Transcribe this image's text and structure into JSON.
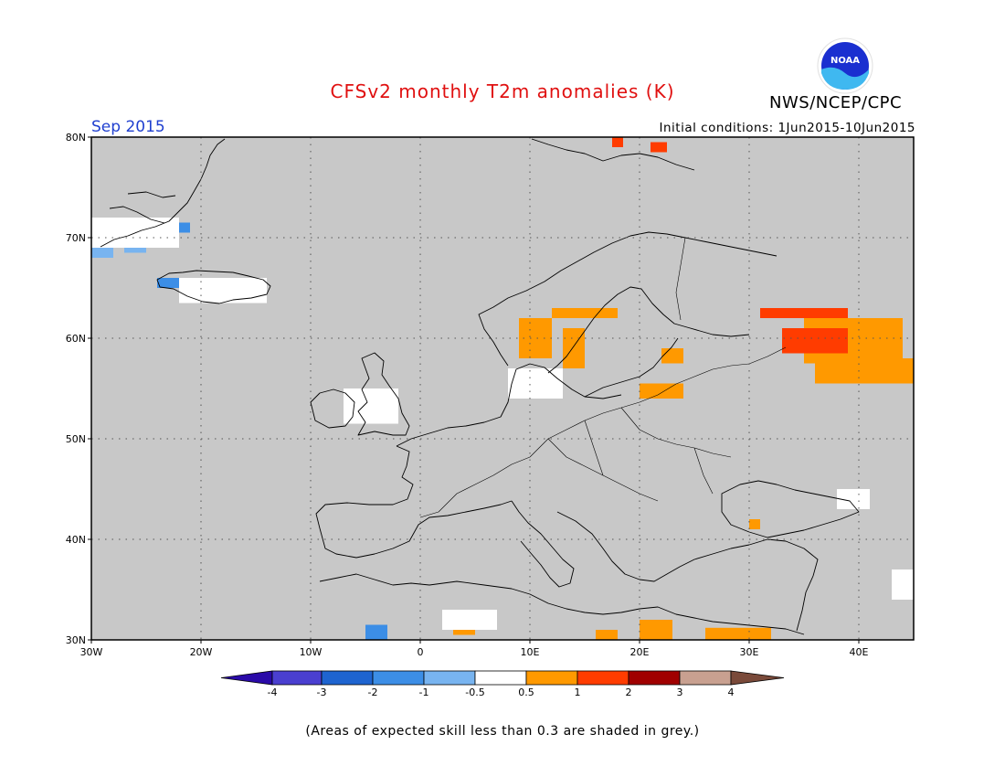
{
  "title": "CFSv2 monthly T2m anomalies (K)",
  "agency": "NWS/NCEP/CPC",
  "valid_month": "Sep 2015",
  "initial_conditions": "Initial conditions: 1Jun2015-10Jun2015",
  "footnote": "(Areas of expected skill less than 0.3 are shaded in grey.)",
  "logo_text": "NOAA",
  "map": {
    "lon_range": [
      -30,
      45
    ],
    "lat_range": [
      30,
      80
    ],
    "lon_ticks": [
      {
        "value": -30,
        "label": "30W"
      },
      {
        "value": -20,
        "label": "20W"
      },
      {
        "value": -10,
        "label": "10W"
      },
      {
        "value": 0,
        "label": "0"
      },
      {
        "value": 10,
        "label": "10E"
      },
      {
        "value": 20,
        "label": "20E"
      },
      {
        "value": 30,
        "label": "30E"
      },
      {
        "value": 40,
        "label": "40E"
      }
    ],
    "lat_ticks": [
      {
        "value": 30,
        "label": "30N"
      },
      {
        "value": 40,
        "label": "40N"
      },
      {
        "value": 50,
        "label": "50N"
      },
      {
        "value": 60,
        "label": "60N"
      },
      {
        "value": 70,
        "label": "70N"
      },
      {
        "value": 80,
        "label": "80N"
      }
    ],
    "skill_mask_color": "#c8c8c8",
    "anomaly_cells": [
      {
        "lon0": 31,
        "lon1": 39,
        "lat0": 62,
        "lat1": 63,
        "value": 1.5
      },
      {
        "lon0": 35,
        "lon1": 44,
        "lat0": 57.5,
        "lat1": 62,
        "value": 0.7
      },
      {
        "lon0": 33,
        "lon1": 39,
        "lat0": 58.5,
        "lat1": 61,
        "value": 1.5
      },
      {
        "lon0": 36,
        "lon1": 45,
        "lat0": 55.5,
        "lat1": 58,
        "value": 0.7
      },
      {
        "lon0": 9,
        "lon1": 12,
        "lat0": 58,
        "lat1": 62,
        "value": 0.7
      },
      {
        "lon0": 13,
        "lon1": 15,
        "lat0": 57,
        "lat1": 61,
        "value": 0.7
      },
      {
        "lon0": 20,
        "lon1": 24,
        "lat0": 54,
        "lat1": 55.5,
        "value": 0.7
      },
      {
        "lon0": 22,
        "lon1": 24,
        "lat0": 57.5,
        "lat1": 59,
        "value": 0.7
      },
      {
        "lon0": 3,
        "lon1": 5,
        "lat0": 30.5,
        "lat1": 31.5,
        "value": 0.7
      },
      {
        "lon0": 16,
        "lon1": 18,
        "lat0": 30,
        "lat1": 31,
        "value": 0.7
      },
      {
        "lon0": 20,
        "lon1": 23,
        "lat0": 30,
        "lat1": 32,
        "value": 0.7
      },
      {
        "lon0": 26,
        "lon1": 32,
        "lat0": 30,
        "lat1": 31.2,
        "value": 0.7
      },
      {
        "lon0": 30,
        "lon1": 31,
        "lat0": 41,
        "lat1": 42,
        "value": 0.7
      },
      {
        "lon0": 17.5,
        "lon1": 18.5,
        "lat0": 79,
        "lat1": 80,
        "value": 1.5
      },
      {
        "lon0": 21,
        "lon1": 22.5,
        "lat0": 78.5,
        "lat1": 79.5,
        "value": 1.5
      },
      {
        "lon0": -30,
        "lon1": -28,
        "lat0": 68,
        "lat1": 69,
        "value": -0.8
      },
      {
        "lon0": -27,
        "lon1": -25,
        "lat0": 68.5,
        "lat1": 69.5,
        "value": -0.8
      },
      {
        "lon0": -23,
        "lon1": -21,
        "lat0": 70.5,
        "lat1": 71.5,
        "value": -1.5
      },
      {
        "lon0": -24,
        "lon1": -22,
        "lat0": 65,
        "lat1": 66,
        "value": -1.5
      },
      {
        "lon0": -5,
        "lon1": -3,
        "lat0": 30,
        "lat1": 31.5,
        "value": -1.5
      },
      {
        "lon0": 12,
        "lon1": 18,
        "lat0": 62,
        "lat1": 63,
        "value": 0.7
      },
      {
        "lon0": -22,
        "lon1": -14,
        "lat0": 63.5,
        "lat1": 66,
        "value": 0.0
      },
      {
        "lon0": -30,
        "lon1": -22,
        "lat0": 69,
        "lat1": 72,
        "value": 0.0
      },
      {
        "lon0": -7,
        "lon1": -2,
        "lat0": 51.5,
        "lat1": 55,
        "value": 0.0
      },
      {
        "lon0": 8,
        "lon1": 13,
        "lat0": 54,
        "lat1": 57,
        "value": 0.0
      },
      {
        "lon0": 2,
        "lon1": 7,
        "lat0": 31,
        "lat1": 33,
        "value": 0.0
      },
      {
        "lon0": 38,
        "lon1": 41,
        "lat0": 43,
        "lat1": 45,
        "value": 0.0
      },
      {
        "lon0": 43,
        "lon1": 45,
        "lat0": 34,
        "lat1": 37,
        "value": 0.0
      }
    ]
  },
  "colorbar": {
    "labels": [
      "-4",
      "-3",
      "-2",
      "-1",
      "-0.5",
      "0.5",
      "1",
      "2",
      "3",
      "4"
    ],
    "bins": [
      {
        "color": "#2a0aa8"
      },
      {
        "color": "#4a3fd0"
      },
      {
        "color": "#1e64d0"
      },
      {
        "color": "#3c8ee6"
      },
      {
        "color": "#78b4f0"
      },
      {
        "color": "#ffffff"
      },
      {
        "color": "#ff9900"
      },
      {
        "color": "#ff3c00"
      },
      {
        "color": "#a00000"
      },
      {
        "color": "#c8a090"
      },
      {
        "color": "#7a4a3a"
      }
    ]
  }
}
